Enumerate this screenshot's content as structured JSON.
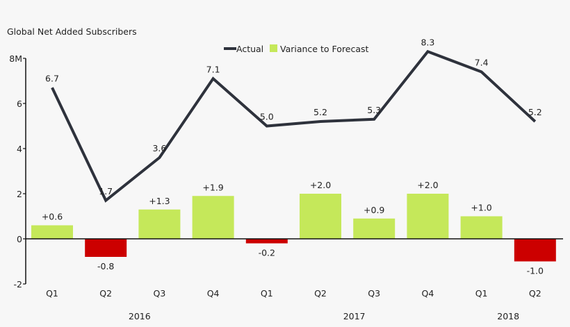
{
  "chart_data": {
    "type": "bar+line",
    "title": "Global Net Added Subscribers",
    "categories": [
      "Q1",
      "Q2",
      "Q3",
      "Q4",
      "Q1",
      "Q2",
      "Q3",
      "Q4",
      "Q1",
      "Q2"
    ],
    "groups": [
      {
        "label": "2016",
        "span": [
          0,
          3
        ]
      },
      {
        "label": "2017",
        "span": [
          4,
          7
        ]
      },
      {
        "label": "2018",
        "span": [
          8,
          9
        ]
      }
    ],
    "series": [
      {
        "name": "Actual",
        "type": "line",
        "color": "#2e323c",
        "values": [
          6.7,
          1.7,
          3.6,
          7.1,
          5.0,
          5.2,
          5.3,
          8.3,
          7.4,
          5.2
        ],
        "labels": [
          "6.7",
          "1.7",
          "3.6",
          "7.1",
          "5.0",
          "5.2",
          "5.3",
          "8.3",
          "7.4",
          "5.2"
        ]
      },
      {
        "name": "Variance to Forecast",
        "type": "bar",
        "color": "#c5e85a",
        "negative_color": "#cc0000",
        "values": [
          0.6,
          -0.8,
          1.3,
          1.9,
          -0.2,
          2.0,
          0.9,
          2.0,
          1.0,
          -1.0
        ],
        "labels": [
          "+0.6",
          "-0.8",
          "+1.3",
          "+1.9",
          "-0.2",
          "+2.0",
          "+0.9",
          "+2.0",
          "+1.0",
          "-1.0"
        ]
      }
    ],
    "yticks": [
      "8M",
      "6",
      "4",
      "2",
      "0",
      "-2"
    ],
    "ytick_values": [
      8,
      6,
      4,
      2,
      0,
      -2
    ],
    "ylim": [
      -2,
      8
    ],
    "grid": false,
    "legend_placement": "top-center"
  }
}
